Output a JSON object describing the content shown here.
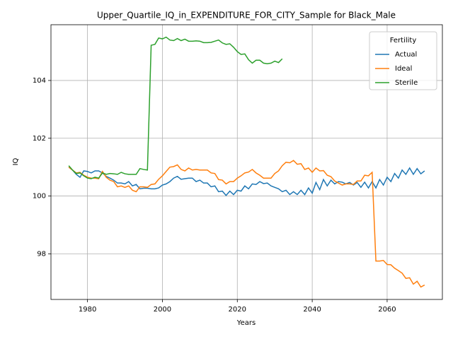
{
  "chart_data": {
    "type": "line",
    "title": "Upper_Quartile_IQ_in_EXPENDITURE_FOR_CITY_Sample for Black_Male",
    "xlabel": "Years",
    "ylabel": "IQ",
    "legend_title": "Fertility",
    "legend": "upper right",
    "grid": true,
    "x": [
      1975,
      1976,
      1977,
      1978,
      1979,
      1980,
      1981,
      1982,
      1983,
      1984,
      1985,
      1986,
      1987,
      1988,
      1989,
      1990,
      1991,
      1992,
      1993,
      1994,
      1995,
      1996,
      1997,
      1998,
      1999,
      2000,
      2001,
      2002,
      2003,
      2004,
      2005,
      2006,
      2007,
      2008,
      2009,
      2010,
      2011,
      2012,
      2013,
      2014,
      2015,
      2016,
      2017,
      2018,
      2019,
      2020,
      2021,
      2022,
      2023,
      2024,
      2025,
      2026,
      2027,
      2028,
      2029,
      2030,
      2031,
      2032,
      2033,
      2034,
      2035,
      2036,
      2037,
      2038,
      2039,
      2040,
      2041,
      2042,
      2043,
      2044,
      2045,
      2046,
      2047,
      2048,
      2049,
      2050,
      2051,
      2052,
      2053,
      2054,
      2055,
      2056,
      2057,
      2058,
      2059,
      2060,
      2061,
      2062,
      2063,
      2064,
      2065,
      2066,
      2067,
      2068,
      2069,
      2070
    ],
    "xlim": [
      1970.25,
      2074.75
    ],
    "xticks": [
      1980,
      2000,
      2020,
      2040,
      2060
    ],
    "ylim": [
      96.42,
      105.93
    ],
    "yticks": [
      98,
      100,
      102,
      104
    ],
    "series": [
      {
        "name": "Actual",
        "color": "#1f77b4",
        "values": [
          101.0,
          100.9,
          100.75,
          100.65,
          100.87,
          100.85,
          100.8,
          100.87,
          100.87,
          100.8,
          100.68,
          100.62,
          100.55,
          100.45,
          100.45,
          100.42,
          100.5,
          100.35,
          100.4,
          100.25,
          100.27,
          100.27,
          100.25,
          100.25,
          100.28,
          100.38,
          100.42,
          100.5,
          100.62,
          100.68,
          100.58,
          100.6,
          100.62,
          100.62,
          100.5,
          100.55,
          100.45,
          100.45,
          100.32,
          100.35,
          100.15,
          100.17,
          100.02,
          100.17,
          100.05,
          100.2,
          100.17,
          100.35,
          100.25,
          100.42,
          100.4,
          100.5,
          100.43,
          100.45,
          100.35,
          100.3,
          100.25,
          100.15,
          100.2,
          100.05,
          100.15,
          100.05,
          100.2,
          100.05,
          100.28,
          100.1,
          100.47,
          100.22,
          100.57,
          100.35,
          100.55,
          100.42,
          100.5,
          100.48,
          100.42,
          100.47,
          100.38,
          100.47,
          100.3,
          100.48,
          100.28,
          100.5,
          100.28,
          100.57,
          100.38,
          100.65,
          100.5,
          100.78,
          100.62,
          100.9,
          100.75,
          100.97,
          100.75,
          100.95,
          100.77,
          100.87
        ]
      },
      {
        "name": "Ideal",
        "color": "#ff7f0e",
        "values": [
          101.0,
          100.9,
          100.8,
          100.82,
          100.72,
          100.65,
          100.62,
          100.62,
          100.6,
          100.85,
          100.65,
          100.55,
          100.5,
          100.32,
          100.35,
          100.3,
          100.35,
          100.2,
          100.15,
          100.32,
          100.32,
          100.3,
          100.4,
          100.42,
          100.58,
          100.7,
          100.85,
          101.0,
          101.02,
          101.08,
          100.92,
          100.87,
          100.97,
          100.9,
          100.92,
          100.9,
          100.9,
          100.9,
          100.8,
          100.78,
          100.57,
          100.55,
          100.42,
          100.5,
          100.5,
          100.62,
          100.7,
          100.8,
          100.83,
          100.92,
          100.8,
          100.72,
          100.62,
          100.62,
          100.62,
          100.78,
          100.87,
          101.05,
          101.17,
          101.15,
          101.23,
          101.1,
          101.12,
          100.92,
          100.97,
          100.82,
          100.97,
          100.87,
          100.88,
          100.72,
          100.67,
          100.52,
          100.45,
          100.38,
          100.42,
          100.42,
          100.4,
          100.52,
          100.52,
          100.72,
          100.7,
          100.82,
          97.75,
          97.75,
          97.77,
          97.63,
          97.62,
          97.5,
          97.42,
          97.33,
          97.15,
          97.17,
          96.95,
          97.05,
          96.85,
          96.92
        ]
      },
      {
        "name": "Sterile",
        "color": "#2ca02c",
        "values": [
          101.05,
          100.9,
          100.78,
          100.8,
          100.7,
          100.62,
          100.6,
          100.65,
          100.62,
          100.8,
          100.75,
          100.78,
          100.77,
          100.75,
          100.82,
          100.77,
          100.75,
          100.75,
          100.75,
          100.95,
          100.92,
          100.9,
          105.22,
          105.25,
          105.47,
          105.44,
          105.5,
          105.4,
          105.38,
          105.45,
          105.38,
          105.43,
          105.36,
          105.36,
          105.37,
          105.36,
          105.31,
          105.31,
          105.32,
          105.36,
          105.4,
          105.3,
          105.25,
          105.27,
          105.15,
          105.0,
          104.9,
          104.92,
          104.72,
          104.6,
          104.7,
          104.7,
          104.6,
          104.58,
          104.6,
          104.67,
          104.62,
          104.75,
          null,
          null,
          null,
          null,
          null,
          null,
          null,
          null,
          null,
          null,
          null,
          null,
          null,
          null,
          null,
          null,
          null,
          null,
          null,
          null,
          null,
          null,
          null,
          null,
          null,
          null,
          null,
          null,
          null,
          null,
          null,
          null,
          null,
          null,
          null,
          null,
          null,
          null
        ]
      }
    ]
  }
}
